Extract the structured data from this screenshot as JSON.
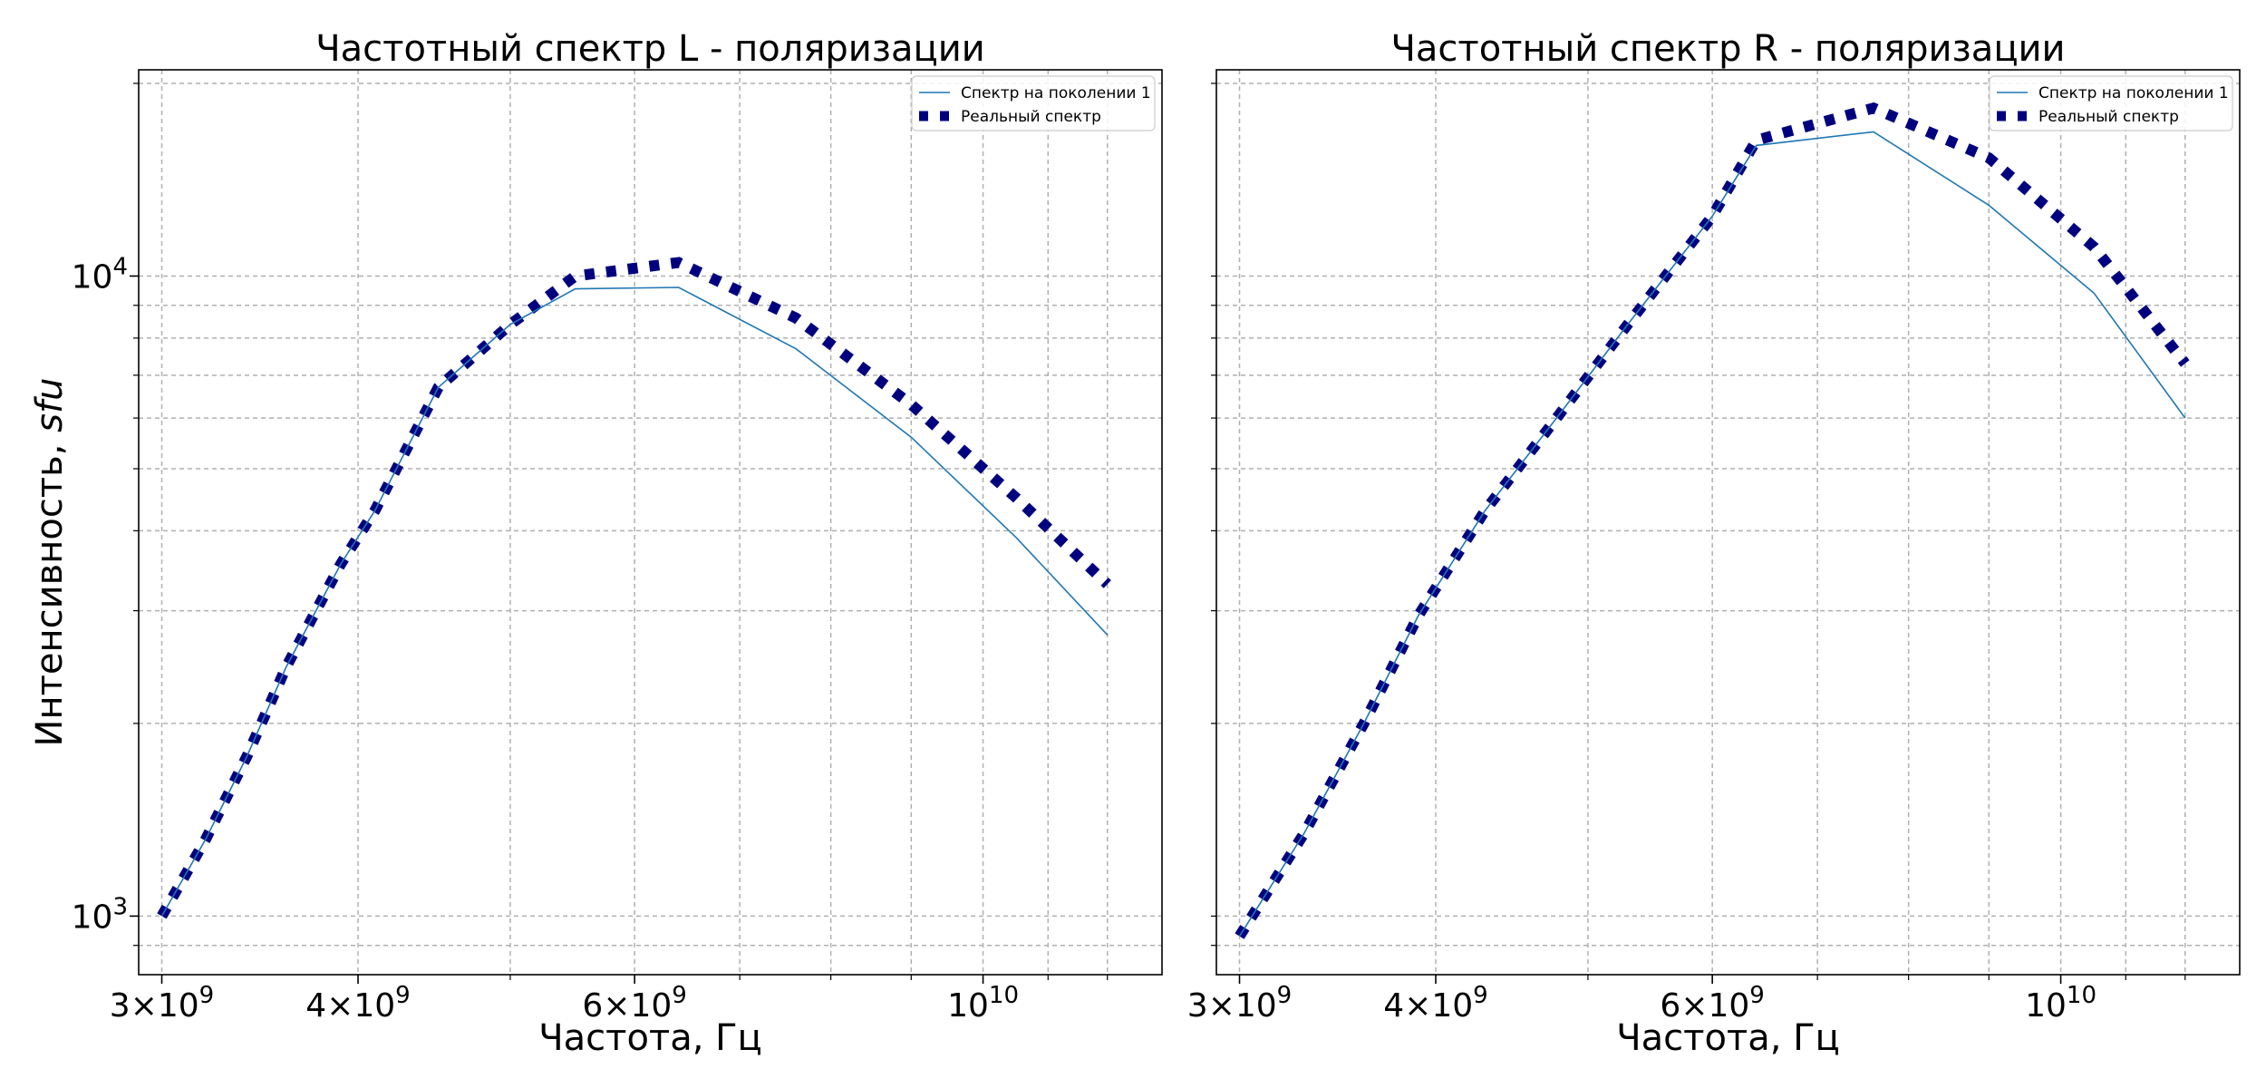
{
  "figure": {
    "ylabel_main": "Интенсивность, ",
    "ylabel_unit": "sfu"
  },
  "chart_data": [
    {
      "type": "line",
      "title": "Частотный спектр L - поляризации",
      "xlabel": "Частота, Гц",
      "ylabel": "Интенсивность, sfu",
      "x_scale": "log",
      "y_scale": "log",
      "xlim": [
        2900000000,
        13000000000
      ],
      "ylim": [
        810,
        21000
      ],
      "grid": true,
      "legend_position": "top-right",
      "x_tick_labels": [
        {
          "value": 3000000000,
          "mantissa": "3",
          "exp": "9"
        },
        {
          "value": 4000000000,
          "mantissa": "4",
          "exp": "9"
        },
        {
          "value": 6000000000,
          "mantissa": "6",
          "exp": "9"
        },
        {
          "value": 10000000000,
          "mantissa": "",
          "exp": "10"
        }
      ],
      "x_minor_ticks": [
        5000000000,
        7000000000,
        8000000000,
        9000000000,
        11000000000,
        12000000000
      ],
      "y_tick_labels": [
        {
          "value": 1000,
          "exp": "3"
        },
        {
          "value": 10000,
          "exp": "4"
        }
      ],
      "y_minor_ticks": [
        900,
        2000,
        3000,
        4000,
        5000,
        6000,
        7000,
        8000,
        9000,
        20000
      ],
      "x": [
        3000000000,
        3200000000,
        3400000000,
        3600000000,
        3900000000,
        4100000000,
        4500000000,
        5000000000,
        5500000000,
        6400000000,
        7600000000,
        9000000000,
        10500000000,
        12000000000
      ],
      "series": [
        {
          "name": "Спектр на поколении 1",
          "style": "solid-thin",
          "color": "#1f77b4",
          "values": [
            1000,
            1320,
            1780,
            2450,
            3550,
            4300,
            6700,
            8400,
            9550,
            9600,
            7700,
            5600,
            3900,
            2750
          ]
        },
        {
          "name": "Реальный спектр",
          "style": "dotted-thick",
          "color": "#00007f",
          "values": [
            1000,
            1320,
            1780,
            2450,
            3550,
            4300,
            6700,
            8400,
            10000,
            10500,
            8600,
            6300,
            4500,
            3300
          ]
        }
      ]
    },
    {
      "type": "line",
      "title": "Частотный спектр R - поляризации",
      "xlabel": "Частота, Гц",
      "ylabel": "",
      "x_scale": "log",
      "y_scale": "log",
      "xlim": [
        2900000000,
        13000000000
      ],
      "ylim": [
        810,
        21000
      ],
      "grid": true,
      "legend_position": "top-right",
      "x_tick_labels": [
        {
          "value": 3000000000,
          "mantissa": "3",
          "exp": "9"
        },
        {
          "value": 4000000000,
          "mantissa": "4",
          "exp": "9"
        },
        {
          "value": 6000000000,
          "mantissa": "6",
          "exp": "9"
        },
        {
          "value": 10000000000,
          "mantissa": "",
          "exp": "10"
        }
      ],
      "x_minor_ticks": [
        5000000000,
        7000000000,
        8000000000,
        9000000000,
        11000000000,
        12000000000
      ],
      "y_tick_labels": [],
      "y_minor_ticks": [
        900,
        1000,
        2000,
        3000,
        4000,
        5000,
        6000,
        7000,
        8000,
        9000,
        10000,
        20000
      ],
      "x": [
        3000000000,
        3300000000,
        3600000000,
        3900000000,
        4300000000,
        4800000000,
        5300000000,
        6000000000,
        6400000000,
        7600000000,
        9000000000,
        10500000000,
        12000000000
      ],
      "series": [
        {
          "name": "Спектр на поколении 1",
          "style": "solid-thin",
          "color": "#1f77b4",
          "values": [
            930,
            1350,
            2000,
            2950,
            4300,
            6100,
            8400,
            12400,
            16000,
            16800,
            12900,
            9400,
            6000
          ]
        },
        {
          "name": "Реальный спектр",
          "style": "dotted-thick",
          "color": "#00007f",
          "values": [
            930,
            1350,
            2000,
            2950,
            4300,
            6100,
            8400,
            12400,
            16300,
            18300,
            15300,
            11100,
            7300
          ]
        }
      ]
    }
  ]
}
